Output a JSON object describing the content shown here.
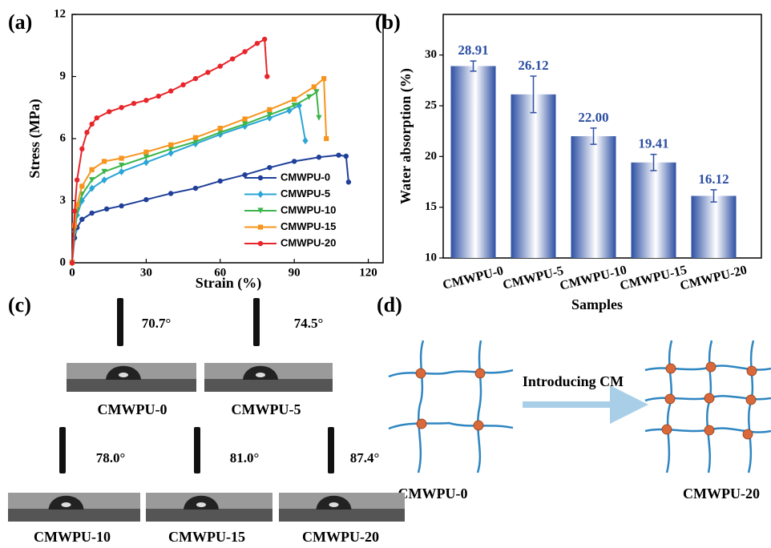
{
  "chart_data": [
    {
      "type": "line",
      "panel_label": "(a)",
      "xlabel": "Strain (%)",
      "ylabel": "Stress (MPa)",
      "xlim": [
        0,
        126
      ],
      "xticks": [
        0,
        30,
        60,
        90,
        120
      ],
      "ylim": [
        0,
        12
      ],
      "yticks": [
        0,
        3,
        6,
        9,
        12
      ],
      "series": [
        {
          "name": "CMWPU-0",
          "color": "#1f3f99",
          "marker": "circle",
          "x": [
            0,
            1,
            2,
            4,
            8,
            14,
            20,
            30,
            40,
            50,
            60,
            70,
            80,
            90,
            100,
            108,
            111,
            112
          ],
          "values": [
            0,
            1.2,
            1.7,
            2.1,
            2.4,
            2.6,
            2.75,
            3.05,
            3.35,
            3.6,
            3.95,
            4.25,
            4.6,
            4.9,
            5.1,
            5.2,
            5.15,
            3.9
          ]
        },
        {
          "name": "CMWPU-5",
          "color": "#2aa5d6",
          "marker": "diamond",
          "x": [
            0,
            1,
            2,
            4,
            8,
            13,
            20,
            30,
            40,
            50,
            60,
            70,
            80,
            88,
            92,
            94.5
          ],
          "values": [
            0,
            1.5,
            2.3,
            3.0,
            3.6,
            4.0,
            4.4,
            4.85,
            5.3,
            5.75,
            6.2,
            6.6,
            7.0,
            7.35,
            7.6,
            5.9
          ]
        },
        {
          "name": "CMWPU-10",
          "color": "#3cb54a",
          "marker": "triangle",
          "x": [
            0,
            1,
            2,
            4,
            8,
            13,
            20,
            30,
            40,
            50,
            60,
            70,
            80,
            90,
            96,
            99,
            100
          ],
          "values": [
            0,
            1.6,
            2.5,
            3.3,
            4.0,
            4.4,
            4.7,
            5.1,
            5.5,
            5.85,
            6.3,
            6.7,
            7.15,
            7.6,
            8.0,
            8.25,
            7.0
          ]
        },
        {
          "name": "CMWPU-15",
          "color": "#f7941d",
          "marker": "square",
          "x": [
            0,
            1,
            2,
            4,
            8,
            13,
            20,
            30,
            40,
            50,
            60,
            70,
            80,
            90,
            98,
            102,
            103
          ],
          "values": [
            0,
            1.8,
            2.8,
            3.7,
            4.5,
            4.9,
            5.05,
            5.35,
            5.7,
            6.05,
            6.5,
            6.95,
            7.4,
            7.9,
            8.5,
            8.9,
            6.0
          ]
        },
        {
          "name": "CMWPU-20",
          "color": "#e8252a",
          "marker": "circle",
          "x": [
            0,
            1,
            2,
            4,
            6,
            8,
            10,
            15,
            20,
            25,
            30,
            35,
            40,
            45,
            50,
            55,
            60,
            65,
            70,
            75,
            78,
            79
          ],
          "values": [
            0,
            2.5,
            4,
            5.5,
            6.3,
            6.7,
            7.0,
            7.3,
            7.5,
            7.7,
            7.85,
            8.05,
            8.3,
            8.6,
            8.9,
            9.2,
            9.5,
            9.85,
            10.2,
            10.6,
            10.8,
            9.0
          ]
        }
      ]
    },
    {
      "type": "bar",
      "panel_label": "(b)",
      "xlabel": "Samples",
      "ylabel": "Water absorption (%)",
      "categories": [
        "CMWPU-0",
        "CMWPU-5",
        "CMWPU-10",
        "CMWPU-15",
        "CMWPU-20"
      ],
      "values": [
        28.91,
        26.12,
        22.0,
        19.41,
        16.12
      ],
      "value_labels": [
        "28.91",
        "26.12",
        "22.00",
        "19.41",
        "16.12"
      ],
      "errors": [
        0.5,
        1.8,
        0.8,
        0.8,
        0.6
      ],
      "color": "#2c4fa3",
      "ylim": [
        10,
        34
      ],
      "yticks": [
        10,
        15,
        20,
        25,
        30
      ]
    }
  ],
  "contact_angle": {
    "panel_label": "(c)",
    "samples": [
      {
        "name": "CMWPU-0",
        "angle": "70.7°"
      },
      {
        "name": "CMWPU-5",
        "angle": "74.5°"
      },
      {
        "name": "CMWPU-10",
        "angle": "78.0°"
      },
      {
        "name": "CMWPU-15",
        "angle": "81.0°"
      },
      {
        "name": "CMWPU-20",
        "angle": "87.4°"
      }
    ]
  },
  "network_diagram": {
    "panel_label": "(d)",
    "arrow_label": "Introducing CM",
    "left_label": "CMWPU-0",
    "right_label": "CMWPU-20"
  }
}
